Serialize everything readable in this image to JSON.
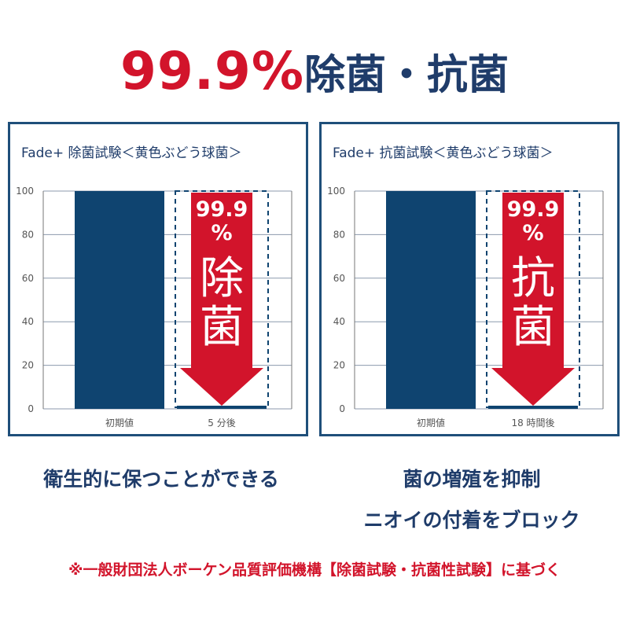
{
  "headline": {
    "percent": "99.9%",
    "rest": "除菌・抗菌"
  },
  "colors": {
    "bar": "#0f4470",
    "arrow": "#d2142b",
    "headline_red": "#d2142b",
    "navy": "#1f3c6a",
    "grid": "#8c9aad"
  },
  "chart_data": [
    {
      "type": "bar",
      "title": "Fade+ 除菌試験＜黄色ぶどう球菌＞",
      "categories": [
        "初期値",
        "5 分後"
      ],
      "values": [
        100,
        0.1
      ],
      "ylim": [
        0,
        100
      ],
      "yticks": [
        "100",
        "80",
        "60",
        "40",
        "20",
        "0"
      ],
      "grid": true,
      "annotation": {
        "value": "99.9",
        "unit": "%",
        "word1": "除",
        "word2": "菌"
      }
    },
    {
      "type": "bar",
      "title": "Fade+ 抗菌試験＜黄色ぶどう球菌＞",
      "categories": [
        "初期値",
        "18 時間後"
      ],
      "values": [
        100,
        0.1
      ],
      "ylim": [
        0,
        100
      ],
      "yticks": [
        "100",
        "80",
        "60",
        "40",
        "20",
        "0"
      ],
      "grid": true,
      "annotation": {
        "value": "99.9",
        "unit": "%",
        "word1": "抗",
        "word2": "菌"
      }
    }
  ],
  "captions": {
    "left": "衛生的に保つことができる",
    "right1": "菌の増殖を抑制",
    "right2": "ニオイの付着をブロック"
  },
  "footnote": "※一般財団法人ボーケン品質評価機構【除菌試験・抗菌性試験】に基づく"
}
